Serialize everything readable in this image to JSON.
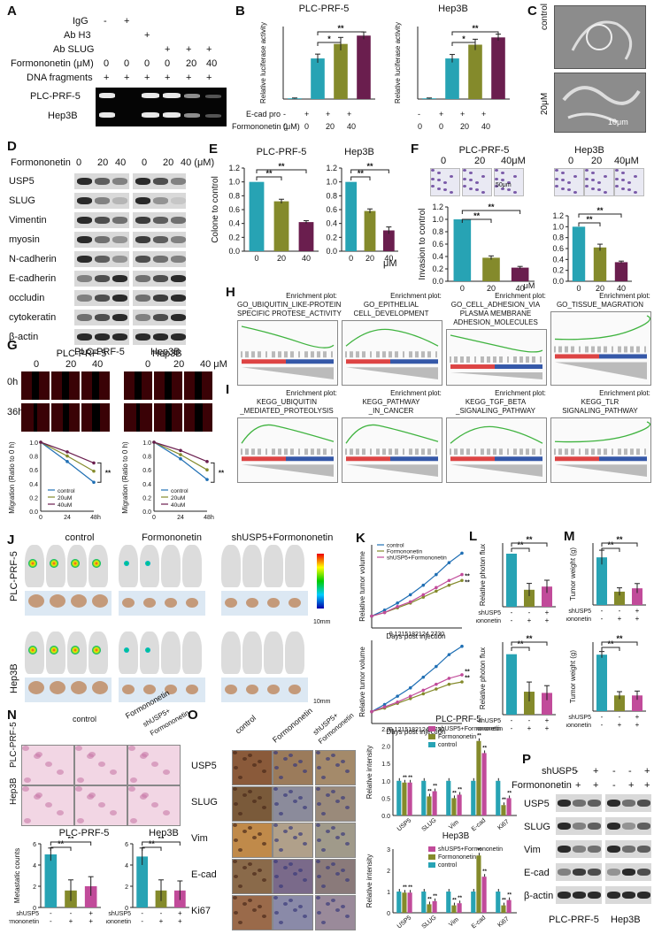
{
  "panels": {
    "A": "A",
    "B": "B",
    "C": "C",
    "D": "D",
    "E": "E",
    "F": "F",
    "G": "G",
    "H": "H",
    "I": "I",
    "J": "J",
    "K": "K",
    "L": "L",
    "M": "M",
    "N": "N",
    "O": "O",
    "P": "P"
  },
  "panelA": {
    "rows": [
      "IgG",
      "Ab H3",
      "Ab SLUG",
      "Formononetin (μM)",
      "DNA fragments"
    ],
    "row_vals": {
      "igg": [
        "-",
        "+",
        "",
        "",
        "",
        ""
      ],
      "abh3": [
        "",
        "",
        "+",
        "",
        "",
        ""
      ],
      "abslug": [
        "",
        "",
        "",
        "+",
        "+",
        "+"
      ],
      "form": [
        "0",
        "0",
        "0",
        "0",
        "20",
        "40"
      ],
      "dna": [
        "+",
        "+",
        "+",
        "+",
        "+",
        "+"
      ]
    },
    "cells": [
      "PLC-PRF-5",
      "Hep3B"
    ]
  },
  "panelB": {
    "ylabel": "Relative luciferase activity",
    "row1_label": "E-cad pro",
    "row2_label": "Formononetin (μM)",
    "row1_vals": [
      "-",
      "+",
      "+",
      "+"
    ],
    "row2_vals": [
      "0",
      "0",
      "20",
      "40"
    ],
    "sig": [
      "*",
      "**"
    ]
  },
  "panelC": {
    "labels": [
      "control",
      "20μM"
    ],
    "scale": "10μm"
  },
  "panelD": {
    "header": "Formononetin",
    "doses": [
      "0",
      "20",
      "40",
      "0",
      "20",
      "40 (μM)"
    ],
    "proteins": [
      "USP5",
      "SLUG",
      "Vimentin",
      "myosin",
      "N-cadherin",
      "E-cadherin",
      "occludin",
      "cytokeratin",
      "β-actin"
    ],
    "cells": [
      "PLC-PRF-5",
      "Hep3B"
    ]
  },
  "panelE": {
    "ylabel": "Colone to control",
    "xunit": "μM",
    "sig": [
      "**",
      "**"
    ]
  },
  "panelF": {
    "ylabel": "Invasion to control",
    "doses": [
      "0",
      "20",
      "40μM"
    ],
    "xunit": "μM",
    "scale": "50μm",
    "sig": [
      "**",
      "**"
    ]
  },
  "panelG": {
    "doses": [
      "0",
      "20",
      "40",
      "0",
      "20",
      "40 μM"
    ],
    "times": [
      "0h",
      "36h"
    ],
    "ylabel": "Migration (Ratio to 0 h)",
    "legend": [
      "control",
      "20uM",
      "40uM"
    ],
    "sig": "**"
  },
  "panelH": {
    "plots": [
      [
        "Enrichment plot:",
        "GO_UBIQUITIN_LIKE-PROTEIN",
        "SPECIFIC PROTESE_ACTIVITY"
      ],
      [
        "Enrichment plot:",
        "GO_EPITHELIAL",
        "CELL_DEVELOPMENT"
      ],
      [
        "Enrichment plot:",
        "GO_CELL_ADHESION_VIA",
        "PLASMA MEMBRANE",
        "ADHESION_MOLECULES"
      ],
      [
        "Enrichment plot:",
        "GO_TISSUE_MAGRATION"
      ]
    ]
  },
  "panelI": {
    "plots": [
      [
        "Enrichment plot:",
        "KEGG_UBIQUITIN",
        "_MEDIATED_PROTEOLYSIS"
      ],
      [
        "Enrichment plot:",
        "KEGG_PATHWAY",
        "_IN_CANCER"
      ],
      [
        "Enrichment plot:",
        "KEGG_TGF_BETA",
        "_SIGNALING_PATHWAY"
      ],
      [
        "Enrichment plot:",
        "KEGG_TLR",
        "SIGNALING_PATHWAY"
      ]
    ]
  },
  "panelJ": {
    "groups": [
      "control",
      "Formononetin",
      "shUSP5+Formononetin"
    ],
    "cells": [
      "PLC-PRF-5",
      "Hep3B"
    ],
    "scale": "10mm"
  },
  "panelK": {
    "ylabel": "Relative tumor volume",
    "xlabel": "Days post injection",
    "legend": [
      "control",
      "Formononetin",
      "shUSP5+Formononetin"
    ],
    "xticks": "9 1215182124 2730",
    "sig": "**"
  },
  "panelL": {
    "ylabel": "Relative photon flux",
    "rows": [
      "shUSP5",
      "Formononetin"
    ],
    "row1": [
      "-",
      "-",
      "+"
    ],
    "row2": [
      "-",
      "+",
      "+"
    ],
    "sig": [
      "**",
      "**"
    ]
  },
  "panelM": {
    "ylabel": "Tumor weight (g)",
    "rows": [
      "shUSP5",
      "Formononetin"
    ],
    "row1": [
      "-",
      "-",
      "+"
    ],
    "row2": [
      "-",
      "+",
      "+"
    ],
    "sig": [
      "**",
      "**"
    ]
  },
  "panelN": {
    "cells": [
      "PLC-PRF-5",
      "Hep3B"
    ],
    "groups": [
      "control",
      "Formononetin",
      "shUSP5+",
      "Formononetin"
    ],
    "ylabel": "Metastatic counts",
    "rows": [
      "shUSP5",
      "Formononetin"
    ],
    "row1": [
      "-",
      "-",
      "+"
    ],
    "row2": [
      "-",
      "+",
      "+"
    ],
    "sig": [
      "**",
      "**"
    ]
  },
  "panelO": {
    "groups": [
      "control",
      "Formononetin",
      "shUSP5+",
      "Formononetin"
    ],
    "markers": [
      "USP5",
      "SLUG",
      "Vim",
      "E-cad",
      "Ki67"
    ],
    "ylabel": "Relative intensity",
    "legend": [
      "shUSP5+Formononetin",
      "Formononetin",
      "control"
    ],
    "sig": "**"
  },
  "panelP": {
    "rows_top": [
      "shUSP5",
      "Formononetin"
    ],
    "row1": [
      "-",
      "-",
      "+",
      "-",
      "-",
      "+"
    ],
    "row2": [
      "-",
      "+",
      "+",
      "-",
      "+",
      "+"
    ],
    "proteins": [
      "USP5",
      "SLUG",
      "Vim",
      "E-cad",
      "β-actin"
    ],
    "cells": [
      "PLC-PRF-5",
      "Hep3B"
    ]
  },
  "chart_data": [
    {
      "id": "B-PLC-PRF-5",
      "type": "bar",
      "title": "PLC-PRF-5",
      "ylabel": "Relative luciferase activity",
      "categories": [
        "-/0",
        "+/0",
        "+/20",
        "+/40"
      ],
      "values": [
        0.2,
        11.2,
        15.2,
        17.5
      ],
      "errors": [
        0.1,
        1.2,
        1.8,
        1.0
      ],
      "ylim": [
        0,
        20
      ],
      "colors": [
        "#27a3b4",
        "#27a3b4",
        "#848a2b",
        "#6a1e4e"
      ]
    },
    {
      "id": "B-Hep3B",
      "type": "bar",
      "title": "Hep3B",
      "ylabel": "Relative luciferase activity",
      "categories": [
        "-/0",
        "+/0",
        "+/20",
        "+/40"
      ],
      "values": [
        0.2,
        11.2,
        15.0,
        17.0
      ],
      "errors": [
        0.1,
        1.1,
        1.5,
        0.9
      ],
      "ylim": [
        0,
        20
      ],
      "colors": [
        "#27a3b4",
        "#27a3b4",
        "#848a2b",
        "#6a1e4e"
      ]
    },
    {
      "id": "E-PLC-PRF-5",
      "type": "bar",
      "title": "PLC-PRF-5",
      "ylabel": "Colone to control",
      "categories": [
        "0",
        "20",
        "40"
      ],
      "values": [
        1.0,
        0.72,
        0.42
      ],
      "errors": [
        0.0,
        0.03,
        0.02
      ],
      "ylim": [
        0,
        1.2
      ],
      "yticks": [
        "0.0",
        "0.2",
        "0.4",
        "0.6",
        "0.8",
        "1.0",
        "1.2"
      ],
      "colors": [
        "#27a3b4",
        "#848a2b",
        "#6a1e4e"
      ]
    },
    {
      "id": "E-Hep3B",
      "type": "bar",
      "title": "Hep3B",
      "ylabel": "Colone to control",
      "categories": [
        "0",
        "20",
        "40"
      ],
      "values": [
        1.0,
        0.58,
        0.3
      ],
      "errors": [
        0.0,
        0.03,
        0.05
      ],
      "ylim": [
        0,
        1.2
      ],
      "yticks": [
        "0.0",
        "0.2",
        "0.4",
        "0.6",
        "0.8",
        "1.0",
        "1.2"
      ],
      "colors": [
        "#27a3b4",
        "#848a2b",
        "#6a1e4e"
      ]
    },
    {
      "id": "F-PLC-PRF-5",
      "type": "bar",
      "title": "PLC-PRF-5",
      "ylabel": "Invasion to control",
      "categories": [
        "0",
        "20",
        "40"
      ],
      "values": [
        1.0,
        0.38,
        0.22
      ],
      "errors": [
        0.0,
        0.03,
        0.02
      ],
      "ylim": [
        0,
        1.2
      ],
      "yticks": [
        "0.0",
        "0.2",
        "0.4",
        "0.6",
        "0.8",
        "1.0",
        "1.2"
      ],
      "colors": [
        "#27a3b4",
        "#848a2b",
        "#6a1e4e"
      ]
    },
    {
      "id": "F-Hep3B",
      "type": "bar",
      "title": "Hep3B",
      "ylabel": "Invasion to control",
      "categories": [
        "0",
        "20",
        "40"
      ],
      "values": [
        1.0,
        0.62,
        0.35
      ],
      "errors": [
        0.0,
        0.06,
        0.02
      ],
      "ylim": [
        0,
        1.2
      ],
      "yticks": [
        "0.0",
        "0.2",
        "0.4",
        "0.6",
        "0.8",
        "1.0",
        "1.2"
      ],
      "colors": [
        "#27a3b4",
        "#848a2b",
        "#6a1e4e"
      ]
    },
    {
      "id": "G-PLC-PRF-5",
      "type": "line",
      "ylabel": "Migration (Ratio to 0 h)",
      "xlabel": "h",
      "x": [
        0,
        24,
        48
      ],
      "xticks": [
        "0",
        "24",
        "48"
      ],
      "ylim": [
        0.0,
        1.0
      ],
      "yticks": [
        "0.0",
        "0.2",
        "0.4",
        "0.6",
        "0.8",
        "1.0"
      ],
      "series": [
        {
          "name": "control",
          "values": [
            1.0,
            0.72,
            0.42
          ],
          "color": "#1f6fb4"
        },
        {
          "name": "20uM",
          "values": [
            1.0,
            0.8,
            0.58
          ],
          "color": "#848a2b"
        },
        {
          "name": "40uM",
          "values": [
            1.0,
            0.86,
            0.7
          ],
          "color": "#6a1e4e"
        }
      ]
    },
    {
      "id": "G-Hep3B",
      "type": "line",
      "ylabel": "Migration (Ratio to 0 h)",
      "xlabel": "h",
      "x": [
        0,
        24,
        48
      ],
      "xticks": [
        "0",
        "24",
        "48"
      ],
      "ylim": [
        0.0,
        1.0
      ],
      "yticks": [
        "0.0",
        "0.2",
        "0.4",
        "0.6",
        "0.8",
        "1.0"
      ],
      "series": [
        {
          "name": "control",
          "values": [
            1.0,
            0.76,
            0.46
          ],
          "color": "#1f6fb4"
        },
        {
          "name": "20uM",
          "values": [
            1.0,
            0.82,
            0.6
          ],
          "color": "#848a2b"
        },
        {
          "name": "40uM",
          "values": [
            1.0,
            0.88,
            0.72
          ],
          "color": "#6a1e4e"
        }
      ]
    },
    {
      "id": "K-PLC-PRF-5",
      "type": "line",
      "ylabel": "Relative tumor volume",
      "xlabel": "Days post injection",
      "x": [
        9,
        12,
        15,
        18,
        21,
        24,
        27,
        30
      ],
      "ylim": [
        0,
        7
      ],
      "series": [
        {
          "name": "control",
          "values": [
            1.0,
            1.5,
            2.1,
            2.8,
            3.6,
            4.5,
            5.5,
            6.3
          ],
          "color": "#1f6fb4"
        },
        {
          "name": "Formononetin",
          "values": [
            1.0,
            1.3,
            1.7,
            2.1,
            2.6,
            3.1,
            3.6,
            4.0
          ],
          "color": "#848a2b"
        },
        {
          "name": "shUSP5+Formononetin",
          "values": [
            1.0,
            1.3,
            1.8,
            2.2,
            2.8,
            3.4,
            4.0,
            4.5
          ],
          "color": "#c14b9a"
        }
      ]
    },
    {
      "id": "K-Hep3B",
      "type": "line",
      "ylabel": "Relative tumor volume",
      "xlabel": "Days post injection",
      "x": [
        9,
        12,
        15,
        18,
        21,
        24,
        27,
        30
      ],
      "ylim": [
        0,
        7
      ],
      "series": [
        {
          "name": "control",
          "values": [
            1.0,
            1.6,
            2.3,
            3.0,
            3.9,
            4.8,
            5.8,
            6.5
          ],
          "color": "#1f6fb4"
        },
        {
          "name": "Formononetin",
          "values": [
            1.0,
            1.3,
            1.7,
            2.1,
            2.5,
            2.9,
            3.3,
            3.5
          ],
          "color": "#848a2b"
        },
        {
          "name": "shUSP5+Formononetin",
          "values": [
            1.0,
            1.4,
            1.8,
            2.3,
            2.8,
            3.3,
            3.8,
            4.1
          ],
          "color": "#c14b9a"
        }
      ]
    },
    {
      "id": "L-PLC-PRF-5",
      "type": "bar",
      "ylabel": "Relative photon flux",
      "categories": [
        "-/-",
        "-/+",
        "+/+"
      ],
      "values": [
        1.0,
        0.32,
        0.38
      ],
      "errors": [
        0.0,
        0.12,
        0.12
      ],
      "ylim": [
        0,
        1.2
      ],
      "colors": [
        "#27a3b4",
        "#848a2b",
        "#c14b9a"
      ]
    },
    {
      "id": "L-Hep3B",
      "type": "bar",
      "ylabel": "Relative photon flux",
      "categories": [
        "-/-",
        "-/+",
        "+/+"
      ],
      "values": [
        1.0,
        0.38,
        0.36
      ],
      "errors": [
        0.0,
        0.16,
        0.12
      ],
      "ylim": [
        0,
        1.2
      ],
      "colors": [
        "#27a3b4",
        "#848a2b",
        "#c14b9a"
      ]
    },
    {
      "id": "M-PLC-PRF-5",
      "type": "bar",
      "ylabel": "Tumor weight (g)",
      "categories": [
        "-/-",
        "-/+",
        "+/+"
      ],
      "values": [
        1.0,
        0.28,
        0.35
      ],
      "errors": [
        0.15,
        0.08,
        0.1
      ],
      "ylim": [
        0,
        1.3
      ],
      "colors": [
        "#27a3b4",
        "#848a2b",
        "#c14b9a"
      ]
    },
    {
      "id": "M-Hep3B",
      "type": "bar",
      "ylabel": "Tumor weight (g)",
      "categories": [
        "-/-",
        "-/+",
        "+/+"
      ],
      "values": [
        0.9,
        0.25,
        0.25
      ],
      "errors": [
        0.05,
        0.06,
        0.07
      ],
      "ylim": [
        0,
        1.1
      ],
      "colors": [
        "#27a3b4",
        "#848a2b",
        "#c14b9a"
      ]
    },
    {
      "id": "N-PLC-PRF-5",
      "type": "bar",
      "title": "PLC-PRF-5",
      "ylabel": "Metastatic counts",
      "categories": [
        "-/-",
        "-/+",
        "+/+"
      ],
      "values": [
        5.0,
        1.6,
        2.0
      ],
      "errors": [
        0.6,
        1.0,
        0.9
      ],
      "ylim": [
        0,
        6
      ],
      "yticks": [
        "0",
        "2",
        "4",
        "6"
      ],
      "colors": [
        "#27a3b4",
        "#848a2b",
        "#c14b9a"
      ]
    },
    {
      "id": "N-Hep3B",
      "type": "bar",
      "title": "Hep3B",
      "ylabel": "Metastatic counts",
      "categories": [
        "-/-",
        "-/+",
        "+/+"
      ],
      "values": [
        4.8,
        1.6,
        1.6
      ],
      "errors": [
        0.8,
        1.0,
        0.9
      ],
      "ylim": [
        0,
        6
      ],
      "yticks": [
        "0",
        "2",
        "4",
        "6"
      ],
      "colors": [
        "#27a3b4",
        "#848a2b",
        "#c14b9a"
      ]
    },
    {
      "id": "O-PLC-PRF-5",
      "type": "bar",
      "title": "PLC-PRF-5",
      "ylabel": "Relative intensity",
      "categories": [
        "USP5",
        "SLUG",
        "Vim",
        "E-cad",
        "Ki67"
      ],
      "series": [
        {
          "name": "control",
          "values": [
            1.0,
            1.0,
            1.0,
            1.0,
            1.0
          ],
          "color": "#27a3b4"
        },
        {
          "name": "Formononetin",
          "values": [
            0.95,
            0.55,
            0.5,
            2.15,
            0.3
          ],
          "color": "#848a2b"
        },
        {
          "name": "shUSP5+Formononetin",
          "values": [
            0.95,
            0.7,
            0.6,
            1.8,
            0.5
          ],
          "color": "#c14b9a"
        }
      ],
      "ylim": [
        0,
        2.5
      ],
      "yticks": [
        "0.0",
        "0.5",
        "1.0",
        "1.5",
        "2.0",
        "2.5"
      ]
    },
    {
      "id": "O-Hep3B",
      "type": "bar",
      "title": "Hep3B",
      "ylabel": "Relative intensity",
      "categories": [
        "USP5",
        "SLUG",
        "Vim",
        "E-cad",
        "Ki67"
      ],
      "series": [
        {
          "name": "control",
          "values": [
            1.0,
            1.0,
            1.0,
            1.0,
            1.0
          ],
          "color": "#27a3b4"
        },
        {
          "name": "Formononetin",
          "values": [
            0.95,
            0.4,
            0.35,
            2.7,
            0.35
          ],
          "color": "#848a2b"
        },
        {
          "name": "shUSP5+Formononetin",
          "values": [
            0.95,
            0.55,
            0.45,
            1.7,
            0.6
          ],
          "color": "#c14b9a"
        }
      ],
      "ylim": [
        0,
        3
      ],
      "yticks": [
        "0",
        "1",
        "2",
        "3"
      ]
    }
  ]
}
